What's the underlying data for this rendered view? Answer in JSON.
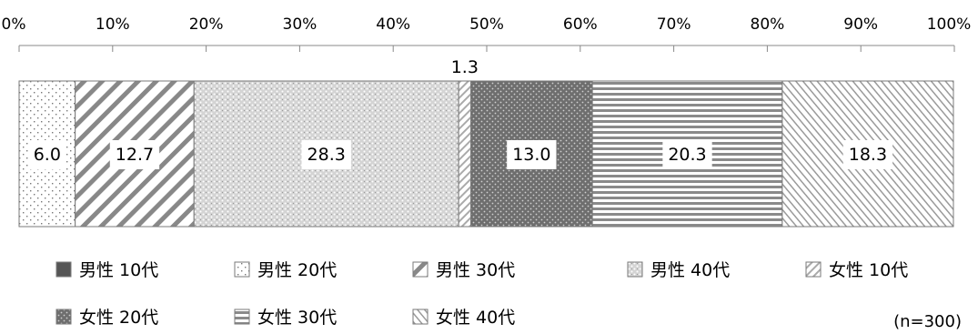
{
  "chart_data": {
    "type": "bar",
    "orientation": "horizontal",
    "stacked": true,
    "percent_axis": true,
    "xlim": [
      0,
      100
    ],
    "x_ticks": [
      "0%",
      "10%",
      "20%",
      "30%",
      "40%",
      "50%",
      "60%",
      "70%",
      "80%",
      "90%",
      "100%"
    ],
    "series": [
      {
        "name": "男性 10代",
        "value": 0.0,
        "label": null,
        "pattern": "solid-dark"
      },
      {
        "name": "男性 20代",
        "value": 6.0,
        "label": "6.0",
        "pattern": "sparse-dots"
      },
      {
        "name": "男性 30代",
        "value": 12.7,
        "label": "12.7",
        "pattern": "wide-diagonal"
      },
      {
        "name": "男性 40代",
        "value": 28.3,
        "label": "28.3",
        "pattern": "dense-dots"
      },
      {
        "name": "女性 10代",
        "value": 1.3,
        "label": "1.3",
        "pattern": "light-diagonal",
        "label_position": "above"
      },
      {
        "name": "女性 20代",
        "value": 13.0,
        "label": "13.0",
        "pattern": "dark-dots"
      },
      {
        "name": "女性 30代",
        "value": 20.3,
        "label": "20.3",
        "pattern": "horizontal-lines"
      },
      {
        "name": "女性 40代",
        "value": 18.3,
        "label": "18.3",
        "pattern": "back-diagonal"
      }
    ],
    "legend_position": "bottom",
    "grid": false
  },
  "note": "(n=300)"
}
